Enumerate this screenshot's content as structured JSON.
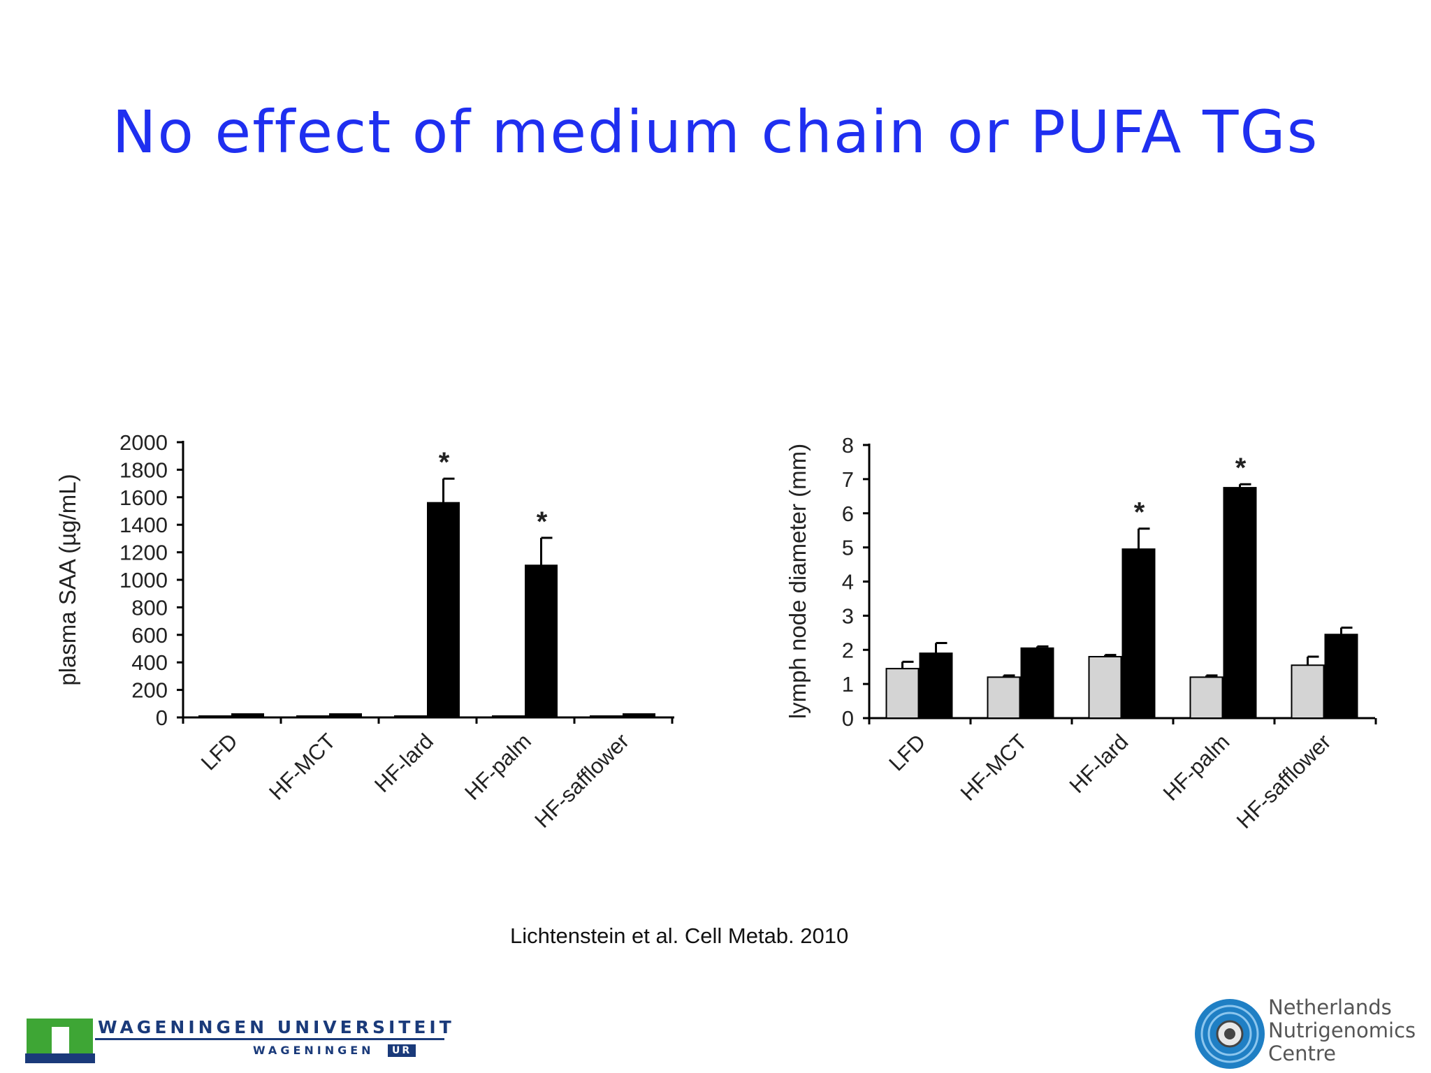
{
  "slide": {
    "title": "No effect of medium chain or PUFA TGs",
    "citation": "Lichtenstein et al. Cell Metab. 2010"
  },
  "logos": {
    "left_line1": "WAGENINGEN UNIVERSITEIT",
    "left_line2": "WAGENINGEN",
    "left_badge": "UR",
    "right_lines": [
      "Netherlands",
      "Nutrigenomics",
      "Centre"
    ]
  },
  "colors": {
    "title": "#1f2ff0",
    "bar_black": "#000000",
    "bar_gray": "#d4d4d4",
    "logo_blue": "#1a3a7a",
    "logo_green": "#3ea635"
  },
  "chart_data": [
    {
      "type": "bar",
      "title": "",
      "xlabel": "",
      "ylabel": "plasma SAA (µg/mL)",
      "categories": [
        "LFD",
        "HF-MCT",
        "HF-lard",
        "HF-palm",
        "HF-safflower"
      ],
      "ylim": [
        0,
        2000
      ],
      "yticks": [
        0,
        200,
        400,
        600,
        800,
        1000,
        1200,
        1400,
        1600,
        1800,
        2000
      ],
      "series": [
        {
          "name": "light",
          "color": "#000000",
          "values": [
            10,
            10,
            10,
            10,
            10
          ],
          "errors": [
            0,
            0,
            0,
            0,
            0
          ]
        },
        {
          "name": "dark",
          "color": "#000000",
          "values": [
            25,
            25,
            1560,
            1105,
            25
          ],
          "errors": [
            0,
            0,
            175,
            200,
            0
          ]
        }
      ],
      "significance": [
        "",
        "",
        "*",
        "*",
        ""
      ]
    },
    {
      "type": "bar",
      "title": "",
      "xlabel": "",
      "ylabel": "lymph node diameter (mm)",
      "categories": [
        "LFD",
        "HF-MCT",
        "HF-lard",
        "HF-palm",
        "HF-safflower"
      ],
      "ylim": [
        0,
        8
      ],
      "yticks": [
        0,
        1,
        2,
        3,
        4,
        5,
        6,
        7,
        8
      ],
      "series": [
        {
          "name": "gray",
          "color": "#d4d4d4",
          "values": [
            1.45,
            1.2,
            1.8,
            1.2,
            1.55
          ],
          "errors": [
            0.2,
            0.05,
            0.05,
            0.05,
            0.25
          ]
        },
        {
          "name": "black",
          "color": "#000000",
          "values": [
            1.9,
            2.05,
            4.95,
            6.75,
            2.45
          ],
          "errors": [
            0.3,
            0.05,
            0.6,
            0.1,
            0.2
          ]
        }
      ],
      "significance": [
        "",
        "",
        "*",
        "*",
        ""
      ]
    }
  ]
}
